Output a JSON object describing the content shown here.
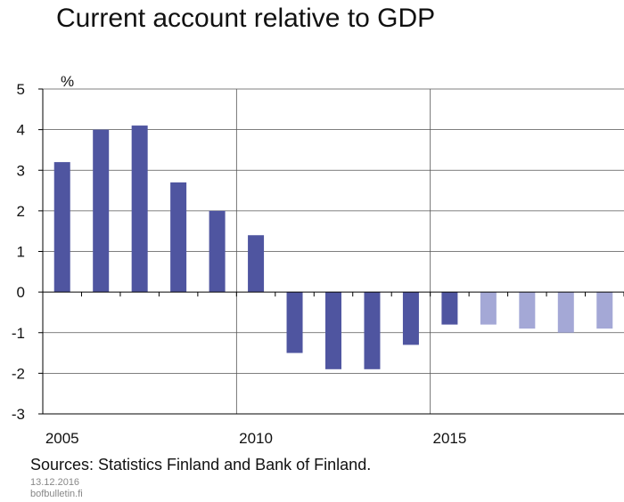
{
  "title": "Current account relative to GDP",
  "sources": "Sources: Statistics Finland and Bank of Finland.",
  "date": "13.12.2016",
  "site": "bofbulletin.fi",
  "colors": {
    "actual": "#4f55a0",
    "forecast": "#a4a8d6",
    "grid": "#555555",
    "axis": "#000000"
  },
  "chart_data": {
    "type": "bar",
    "title": "Current account relative to GDP",
    "ylabel": "%",
    "xlabel": "",
    "ylim": [
      -3,
      5
    ],
    "yticks": [
      -3,
      -2,
      -1,
      0,
      1,
      2,
      3,
      4,
      5
    ],
    "xtick_labels": [
      {
        "year": 2005,
        "label": "2005"
      },
      {
        "year": 2010,
        "label": "2010"
      },
      {
        "year": 2015,
        "label": "2015"
      }
    ],
    "grid": true,
    "categories": [
      "2005",
      "2006",
      "2007",
      "2008",
      "2009",
      "2010",
      "2011",
      "2012",
      "2013",
      "2014",
      "2015",
      "2016",
      "2017",
      "2018",
      "2019"
    ],
    "values": [
      3.2,
      4.0,
      4.1,
      2.7,
      2.0,
      1.4,
      -1.5,
      -1.9,
      -1.9,
      -1.3,
      -0.8,
      -0.8,
      -0.9,
      -1.0,
      -0.9
    ],
    "forecast_from_index": 11
  }
}
